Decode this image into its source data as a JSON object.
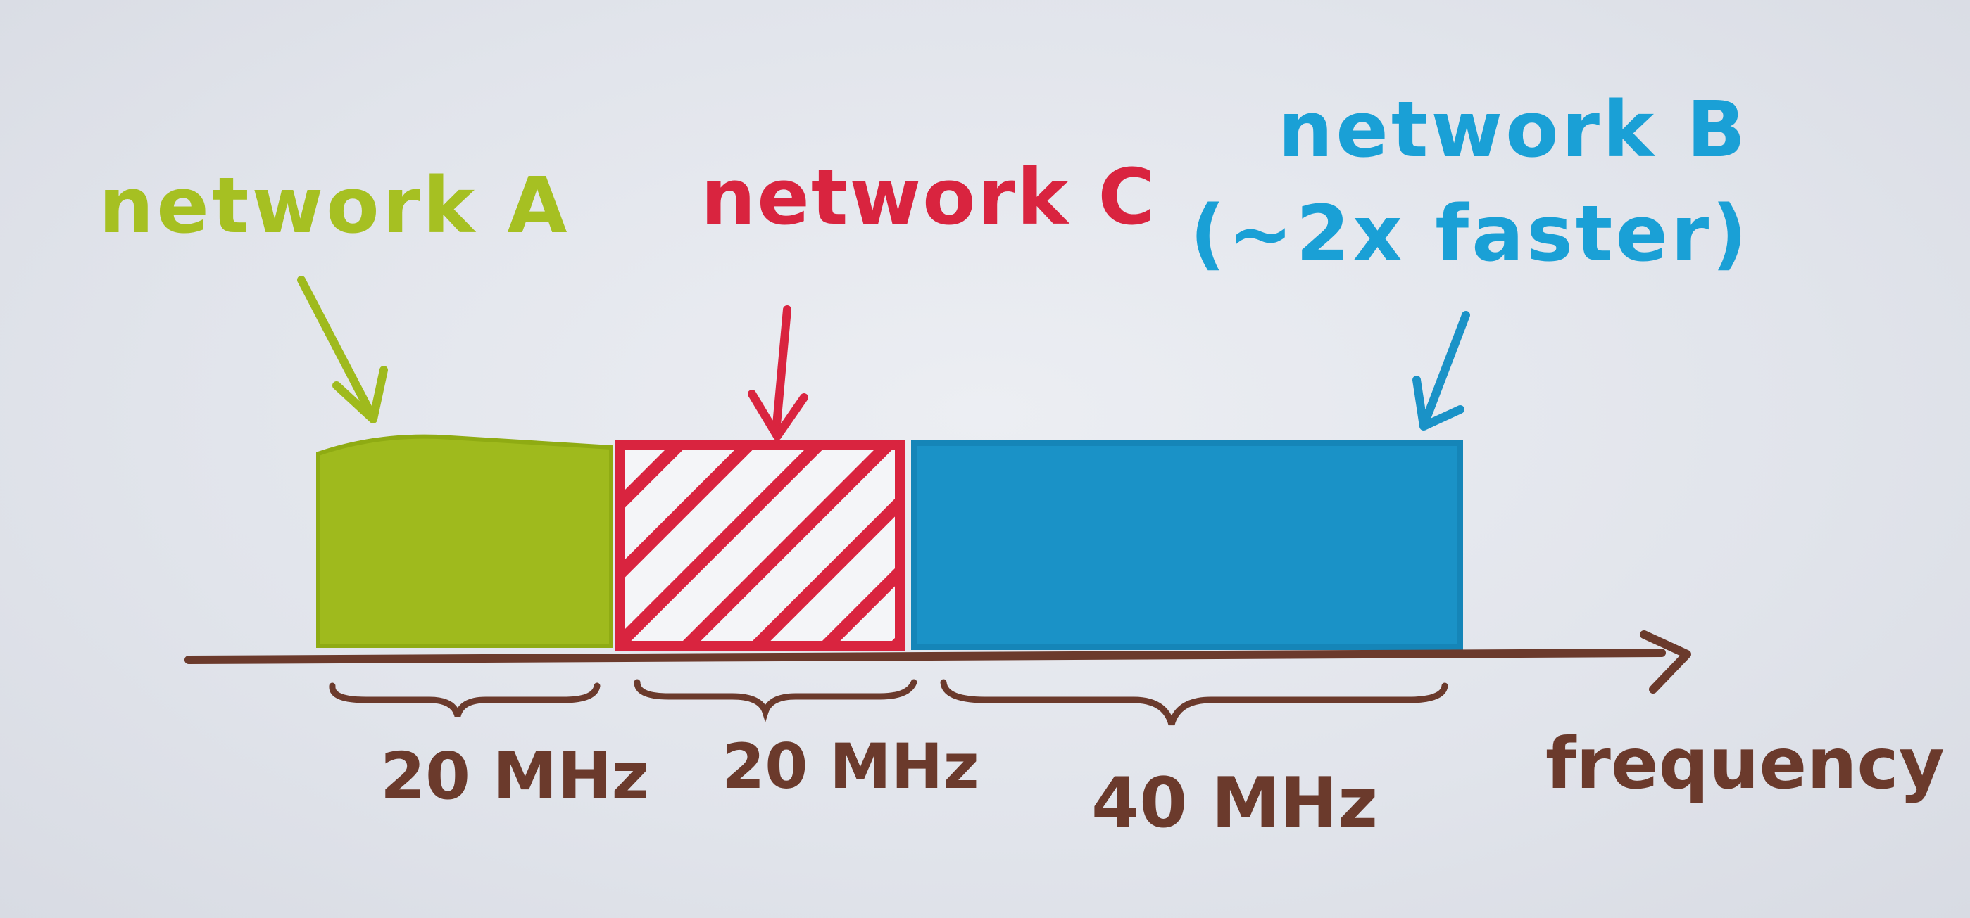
{
  "colors": {
    "paper": "#e2e5ec",
    "network_a": "#9fba1d",
    "network_c": "#d9243f",
    "network_b": "#1a92c7",
    "axis": "#6b3a2c"
  },
  "labels": {
    "network_a": "network A",
    "network_c": "network C",
    "network_b_line1": "network B",
    "network_b_line2": "(~2x faster)",
    "bandwidth_a": "20 MHz",
    "bandwidth_c": "20 MHz",
    "bandwidth_b": "40 MHz",
    "axis": "frequency"
  }
}
